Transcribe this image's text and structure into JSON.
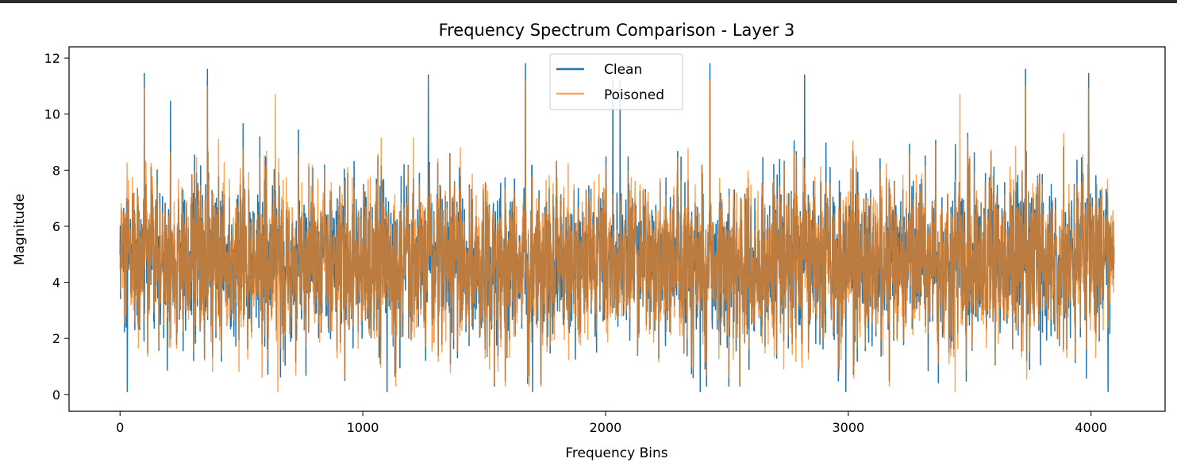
{
  "chart_data": {
    "type": "line",
    "title": "Frequency Spectrum Comparison - Layer 3",
    "xlabel": "Frequency Bins",
    "ylabel": "Magnitude",
    "xlim": [
      -210,
      4305
    ],
    "ylim": [
      -0.6,
      12.4
    ],
    "x_ticks": [
      0,
      1000,
      2000,
      3000,
      4000
    ],
    "x_tick_labels": [
      "0",
      "1000",
      "2000",
      "3000",
      "4000"
    ],
    "y_ticks": [
      0,
      2,
      4,
      6,
      8,
      10,
      12
    ],
    "y_tick_labels": [
      "0",
      "2",
      "4",
      "6",
      "8",
      "10",
      "12"
    ],
    "grid": false,
    "legend_position": "upper center",
    "x_range": [
      0,
      4095
    ],
    "n_points": 4096,
    "series": [
      {
        "name": "Clean",
        "color": "#1f77b4",
        "alpha": 1.0,
        "mean": 4.7,
        "band": [
          0.1,
          11.8
        ],
        "peaks": [
          {
            "x": 100,
            "y": 11.45
          },
          {
            "x": 360,
            "y": 11.6
          },
          {
            "x": 1270,
            "y": 11.4
          },
          {
            "x": 1670,
            "y": 11.8
          },
          {
            "x": 2030,
            "y": 11.2
          },
          {
            "x": 2060,
            "y": 11.2
          },
          {
            "x": 2430,
            "y": 11.8
          },
          {
            "x": 2820,
            "y": 11.4
          },
          {
            "x": 3730,
            "y": 11.6
          },
          {
            "x": 3990,
            "y": 11.45
          }
        ],
        "troughs": [
          {
            "x": 30,
            "y": 0.1
          },
          {
            "x": 1100,
            "y": 0.1
          },
          {
            "x": 1700,
            "y": 0.1
          },
          {
            "x": 2390,
            "y": 0.1
          },
          {
            "x": 2990,
            "y": 0.1
          },
          {
            "x": 4070,
            "y": 0.1
          }
        ]
      },
      {
        "name": "Poisoned",
        "color": "#ff7f0e",
        "alpha": 0.7,
        "mean": 4.7,
        "band": [
          0.1,
          11.2
        ],
        "peaks": [
          {
            "x": 100,
            "y": 10.9
          },
          {
            "x": 360,
            "y": 11.0
          },
          {
            "x": 640,
            "y": 10.7
          },
          {
            "x": 1670,
            "y": 11.2
          },
          {
            "x": 2430,
            "y": 11.2
          },
          {
            "x": 3460,
            "y": 10.7
          },
          {
            "x": 3730,
            "y": 11.0
          },
          {
            "x": 3990,
            "y": 10.9
          }
        ],
        "troughs": [
          {
            "x": 650,
            "y": 0.1
          },
          {
            "x": 3440,
            "y": 0.1
          }
        ]
      }
    ]
  }
}
